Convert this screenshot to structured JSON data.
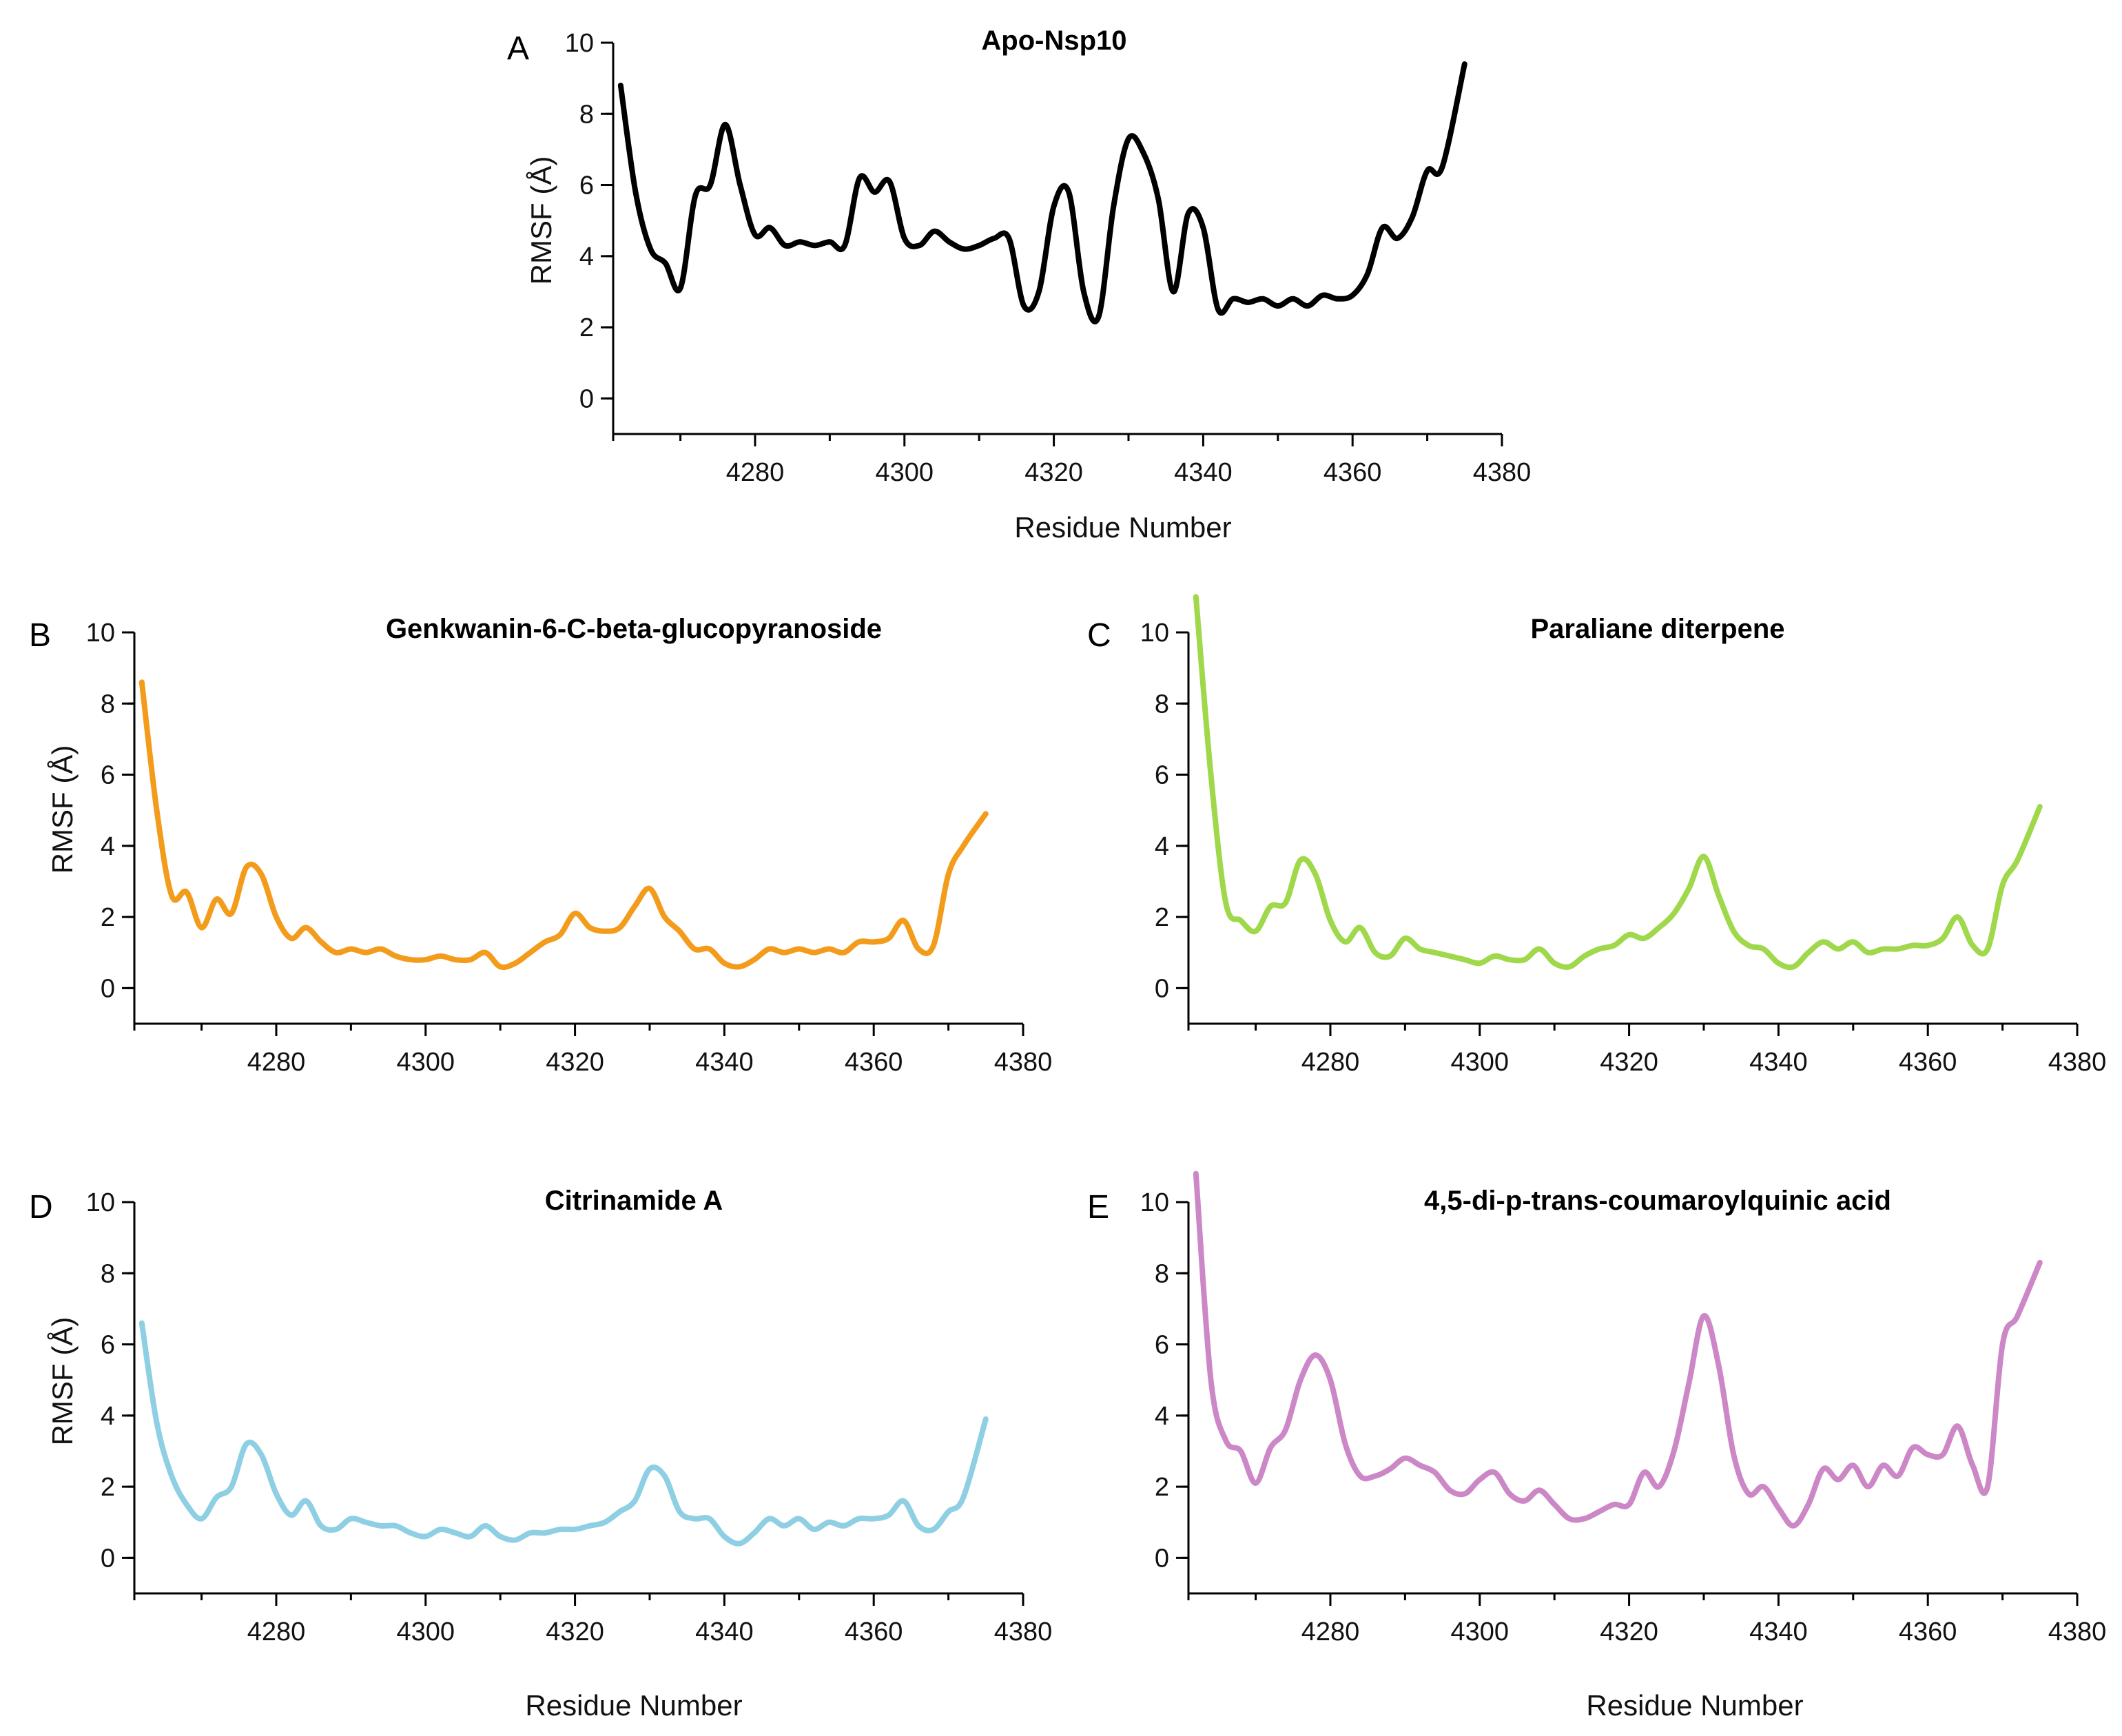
{
  "chart_data": [
    {
      "panel": "A",
      "type": "line",
      "title": "Apo-Nsp10",
      "xlabel": "Residue Number",
      "ylabel": "RMSF (Å)",
      "xlim": [
        4261,
        4380
      ],
      "ylim": [
        -1,
        10
      ],
      "xticks": [
        4280,
        4300,
        4320,
        4340,
        4360,
        4380
      ],
      "yticks": [
        0,
        2,
        4,
        6,
        8,
        10
      ],
      "color": "#000000",
      "series": [
        {
          "name": "Apo-Nsp10",
          "x": [
            4262,
            4264,
            4266,
            4268,
            4270,
            4272,
            4274,
            4276,
            4278,
            4280,
            4282,
            4284,
            4286,
            4288,
            4290,
            4292,
            4294,
            4296,
            4298,
            4300,
            4302,
            4304,
            4306,
            4308,
            4310,
            4312,
            4314,
            4316,
            4318,
            4320,
            4322,
            4324,
            4326,
            4328,
            4330,
            4332,
            4334,
            4336,
            4338,
            4340,
            4342,
            4344,
            4346,
            4348,
            4350,
            4352,
            4354,
            4356,
            4358,
            4360,
            4362,
            4364,
            4366,
            4368,
            4370,
            4372,
            4375
          ],
          "y": [
            8.8,
            5.8,
            4.2,
            3.8,
            3.1,
            5.7,
            6.0,
            7.7,
            6.0,
            4.6,
            4.8,
            4.3,
            4.4,
            4.3,
            4.4,
            4.3,
            6.2,
            5.8,
            6.1,
            4.5,
            4.3,
            4.7,
            4.4,
            4.2,
            4.3,
            4.5,
            4.5,
            2.6,
            3.0,
            5.4,
            5.8,
            3.0,
            2.3,
            5.4,
            7.3,
            6.9,
            5.6,
            3.0,
            5.2,
            4.8,
            2.5,
            2.8,
            2.7,
            2.8,
            2.6,
            2.8,
            2.6,
            2.9,
            2.8,
            2.9,
            3.5,
            4.8,
            4.5,
            5.1,
            6.4,
            6.5,
            9.4
          ]
        }
      ]
    },
    {
      "panel": "B",
      "type": "line",
      "title": "Genkwanin-6-C-beta-glucopyranoside",
      "xlabel": "",
      "ylabel": "RMSF (Å)",
      "xlim": [
        4261,
        4380
      ],
      "ylim": [
        -1,
        10
      ],
      "xticks": [
        4280,
        4300,
        4320,
        4340,
        4360,
        4380
      ],
      "yticks": [
        0,
        2,
        4,
        6,
        8,
        10
      ],
      "color": "#F39C1C",
      "series": [
        {
          "name": "Genkwanin-6-C-beta-glucopyranoside",
          "x": [
            4262,
            4264,
            4266,
            4268,
            4270,
            4272,
            4274,
            4276,
            4278,
            4280,
            4282,
            4284,
            4286,
            4288,
            4290,
            4292,
            4294,
            4296,
            4298,
            4300,
            4302,
            4304,
            4306,
            4308,
            4310,
            4312,
            4314,
            4316,
            4318,
            4320,
            4322,
            4324,
            4326,
            4328,
            4330,
            4332,
            4334,
            4336,
            4338,
            4340,
            4342,
            4344,
            4346,
            4348,
            4350,
            4352,
            4354,
            4356,
            4358,
            4360,
            4362,
            4364,
            4366,
            4368,
            4370,
            4372,
            4375
          ],
          "y": [
            8.6,
            5.0,
            2.6,
            2.7,
            1.7,
            2.5,
            2.1,
            3.4,
            3.2,
            2.0,
            1.4,
            1.7,
            1.3,
            1.0,
            1.1,
            1.0,
            1.1,
            0.9,
            0.8,
            0.8,
            0.9,
            0.8,
            0.8,
            1.0,
            0.6,
            0.7,
            1.0,
            1.3,
            1.5,
            2.1,
            1.7,
            1.6,
            1.7,
            2.3,
            2.8,
            2.0,
            1.6,
            1.1,
            1.1,
            0.7,
            0.6,
            0.8,
            1.1,
            1.0,
            1.1,
            1.0,
            1.1,
            1.0,
            1.3,
            1.3,
            1.4,
            1.9,
            1.1,
            1.2,
            3.2,
            4.0,
            4.9
          ]
        }
      ]
    },
    {
      "panel": "C",
      "type": "line",
      "title": "Paraliane diterpene",
      "xlabel": "",
      "ylabel": "",
      "xlim": [
        4261,
        4380
      ],
      "ylim": [
        -1,
        10
      ],
      "xticks": [
        4280,
        4300,
        4320,
        4340,
        4360,
        4380
      ],
      "yticks": [
        0,
        2,
        4,
        6,
        8,
        10
      ],
      "color": "#9FD84A",
      "series": [
        {
          "name": "Paraliane diterpene",
          "x": [
            4262,
            4264,
            4266,
            4268,
            4270,
            4272,
            4274,
            4276,
            4278,
            4280,
            4282,
            4284,
            4286,
            4288,
            4290,
            4292,
            4294,
            4296,
            4298,
            4300,
            4302,
            4304,
            4306,
            4308,
            4310,
            4312,
            4314,
            4316,
            4318,
            4320,
            4322,
            4324,
            4326,
            4328,
            4330,
            4332,
            4334,
            4336,
            4338,
            4340,
            4342,
            4344,
            4346,
            4348,
            4350,
            4352,
            4354,
            4356,
            4358,
            4360,
            4362,
            4364,
            4366,
            4368,
            4370,
            4372,
            4375
          ],
          "y": [
            11.0,
            6.0,
            2.4,
            1.9,
            1.6,
            2.3,
            2.4,
            3.6,
            3.2,
            1.9,
            1.3,
            1.7,
            1.0,
            0.9,
            1.4,
            1.1,
            1.0,
            0.9,
            0.8,
            0.7,
            0.9,
            0.8,
            0.8,
            1.1,
            0.7,
            0.6,
            0.9,
            1.1,
            1.2,
            1.5,
            1.4,
            1.7,
            2.1,
            2.8,
            3.7,
            2.6,
            1.6,
            1.2,
            1.1,
            0.7,
            0.6,
            1.0,
            1.3,
            1.1,
            1.3,
            1.0,
            1.1,
            1.1,
            1.2,
            1.2,
            1.4,
            2.0,
            1.2,
            1.1,
            2.9,
            3.6,
            5.1
          ]
        }
      ]
    },
    {
      "panel": "D",
      "type": "line",
      "title": "Citrinamide A",
      "xlabel": "Residue Number",
      "ylabel": "RMSF (Å)",
      "xlim": [
        4261,
        4380
      ],
      "ylim": [
        -1,
        10
      ],
      "xticks": [
        4280,
        4300,
        4320,
        4340,
        4360,
        4380
      ],
      "yticks": [
        0,
        2,
        4,
        6,
        8,
        10
      ],
      "color": "#8FCFE3",
      "series": [
        {
          "name": "Citrinamide A",
          "x": [
            4262,
            4264,
            4266,
            4268,
            4270,
            4272,
            4274,
            4276,
            4278,
            4280,
            4282,
            4284,
            4286,
            4288,
            4290,
            4292,
            4294,
            4296,
            4298,
            4300,
            4302,
            4304,
            4306,
            4308,
            4310,
            4312,
            4314,
            4316,
            4318,
            4320,
            4322,
            4324,
            4326,
            4328,
            4330,
            4332,
            4334,
            4336,
            4338,
            4340,
            4342,
            4344,
            4346,
            4348,
            4350,
            4352,
            4354,
            4356,
            4358,
            4360,
            4362,
            4364,
            4366,
            4368,
            4370,
            4372,
            4375
          ],
          "y": [
            6.6,
            3.8,
            2.3,
            1.5,
            1.1,
            1.7,
            2.0,
            3.2,
            2.9,
            1.8,
            1.2,
            1.6,
            0.9,
            0.8,
            1.1,
            1.0,
            0.9,
            0.9,
            0.7,
            0.6,
            0.8,
            0.7,
            0.6,
            0.9,
            0.6,
            0.5,
            0.7,
            0.7,
            0.8,
            0.8,
            0.9,
            1.0,
            1.3,
            1.6,
            2.5,
            2.3,
            1.3,
            1.1,
            1.1,
            0.6,
            0.4,
            0.7,
            1.1,
            0.9,
            1.1,
            0.8,
            1.0,
            0.9,
            1.1,
            1.1,
            1.2,
            1.6,
            0.9,
            0.8,
            1.3,
            1.7,
            3.9
          ]
        }
      ]
    },
    {
      "panel": "E",
      "type": "line",
      "title": "4,5-di-p-trans-coumaroylquinic acid",
      "xlabel": "Residue Number",
      "ylabel": "",
      "xlim": [
        4261,
        4380
      ],
      "ylim": [
        -1,
        10
      ],
      "xticks": [
        4280,
        4300,
        4320,
        4340,
        4360,
        4380
      ],
      "yticks": [
        0,
        2,
        4,
        6,
        8,
        10
      ],
      "color": "#CC88C6",
      "series": [
        {
          "name": "4,5-di-p-trans-coumaroylquinic acid",
          "x": [
            4262,
            4264,
            4266,
            4268,
            4270,
            4272,
            4274,
            4276,
            4278,
            4280,
            4282,
            4284,
            4286,
            4288,
            4290,
            4292,
            4294,
            4296,
            4298,
            4300,
            4302,
            4304,
            4306,
            4308,
            4310,
            4312,
            4314,
            4316,
            4318,
            4320,
            4322,
            4324,
            4326,
            4328,
            4330,
            4332,
            4334,
            4336,
            4338,
            4340,
            4342,
            4344,
            4346,
            4348,
            4350,
            4352,
            4354,
            4356,
            4358,
            4360,
            4362,
            4364,
            4366,
            4368,
            4370,
            4372,
            4375
          ],
          "y": [
            10.8,
            5.0,
            3.3,
            3.0,
            2.1,
            3.1,
            3.6,
            5.0,
            5.7,
            5.0,
            3.2,
            2.3,
            2.3,
            2.5,
            2.8,
            2.6,
            2.4,
            1.9,
            1.8,
            2.2,
            2.4,
            1.8,
            1.6,
            1.9,
            1.5,
            1.1,
            1.1,
            1.3,
            1.5,
            1.5,
            2.4,
            2.0,
            3.0,
            4.9,
            6.8,
            5.4,
            2.9,
            1.8,
            2.0,
            1.4,
            0.9,
            1.5,
            2.5,
            2.2,
            2.6,
            2.0,
            2.6,
            2.3,
            3.1,
            2.9,
            2.9,
            3.7,
            2.6,
            2.0,
            6.0,
            6.8,
            8.3
          ]
        }
      ]
    }
  ]
}
